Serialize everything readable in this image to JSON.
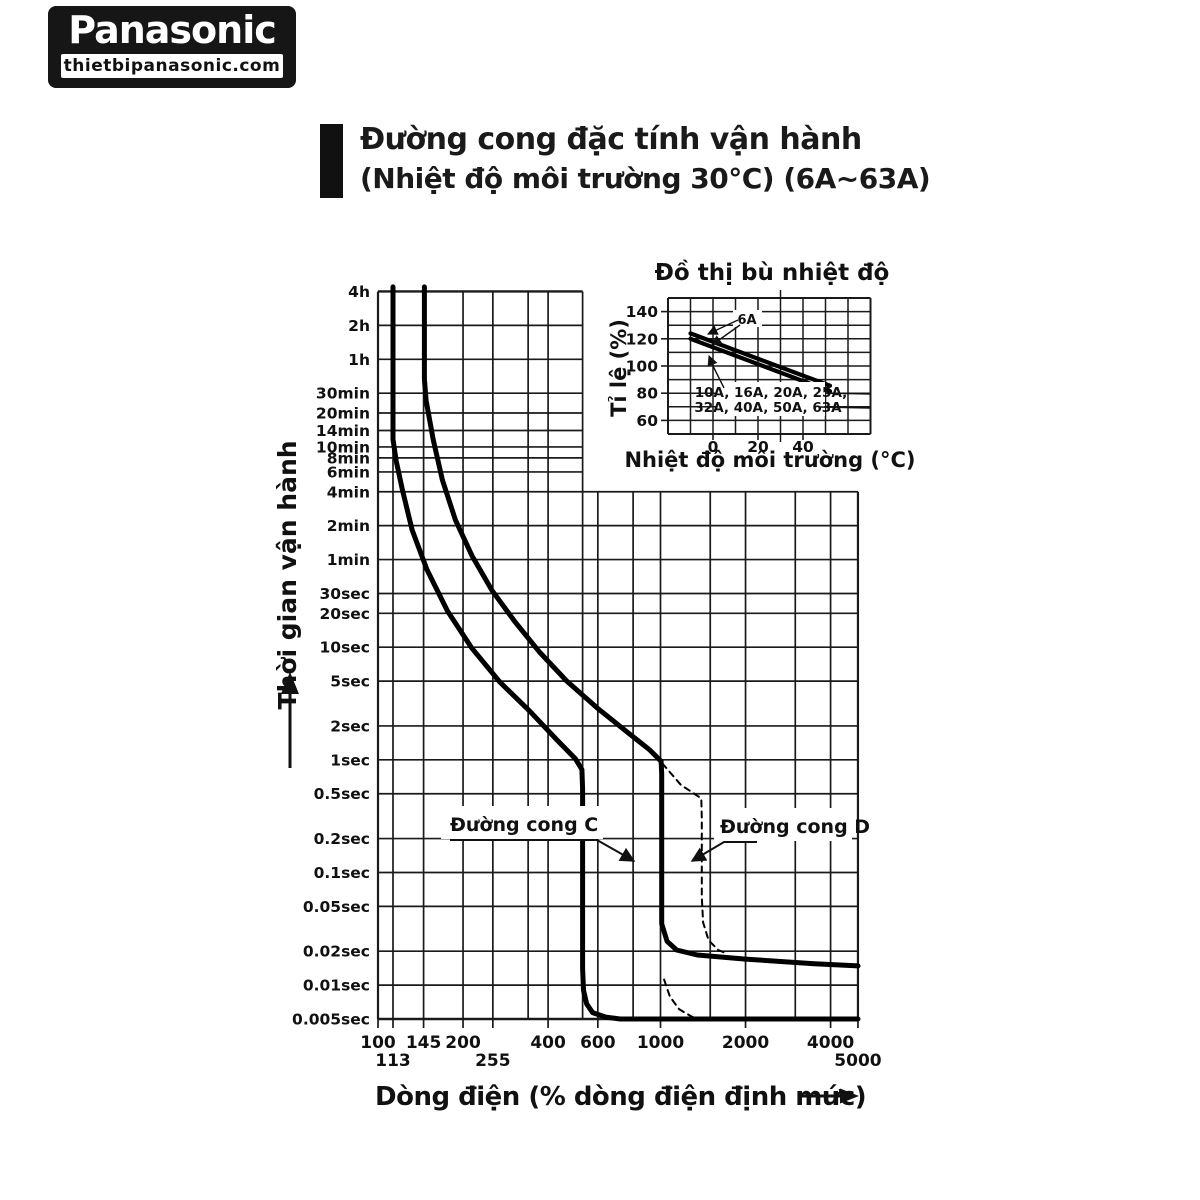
{
  "page": {
    "logo": {
      "brand": "Panasonic",
      "site": "thietbipanasonic.com"
    },
    "title": {
      "line1": "Đường cong đặc tính vận hành",
      "line2": "(Nhiệt độ môi trường 30°C) (6A~63A)"
    }
  },
  "chart_data": [
    {
      "type": "line",
      "name": "trip-characteristic-curve",
      "xlabel": "Dòng điện (% dòng điện định mức)",
      "ylabel": "Thời gian vận hành",
      "x_scale": "log",
      "y_scale": "log",
      "xlim": [
        100,
        5000
      ],
      "ylim": [
        0.005,
        14400
      ],
      "column_x_max": 530,
      "block_y_max": 240,
      "x_ticks": [
        {
          "v": 100,
          "label": "100",
          "row": 0
        },
        {
          "v": 113,
          "label": "113",
          "row": 1
        },
        {
          "v": 145,
          "label": "145",
          "row": 0
        },
        {
          "v": 200,
          "label": "200",
          "row": 0
        },
        {
          "v": 255,
          "label": "255",
          "row": 1
        },
        {
          "v": 400,
          "label": "400",
          "row": 0
        },
        {
          "v": 600,
          "label": "600",
          "row": 0
        },
        {
          "v": 1000,
          "label": "1000",
          "row": 0
        },
        {
          "v": 2000,
          "label": "2000",
          "row": 0
        },
        {
          "v": 4000,
          "label": "4000",
          "row": 0
        },
        {
          "v": 5000,
          "label": "5000",
          "row": 1
        }
      ],
      "x_grid_extra": [
        340,
        530,
        800,
        1500,
        3000
      ],
      "y_ticks": [
        {
          "v": 14400,
          "label": "4h"
        },
        {
          "v": 7200,
          "label": "2h"
        },
        {
          "v": 3600,
          "label": "1h"
        },
        {
          "v": 1800,
          "label": "30min"
        },
        {
          "v": 1200,
          "label": "20min"
        },
        {
          "v": 840,
          "label": "14min"
        },
        {
          "v": 600,
          "label": "10min"
        },
        {
          "v": 480,
          "label": "8min"
        },
        {
          "v": 360,
          "label": "6min"
        },
        {
          "v": 240,
          "label": "4min"
        },
        {
          "v": 120,
          "label": "2min"
        },
        {
          "v": 60,
          "label": "1min"
        },
        {
          "v": 30,
          "label": "30sec"
        },
        {
          "v": 20,
          "label": "20sec"
        },
        {
          "v": 10,
          "label": "10sec"
        },
        {
          "v": 5,
          "label": "5sec"
        },
        {
          "v": 2,
          "label": "2sec"
        },
        {
          "v": 1,
          "label": "1sec"
        },
        {
          "v": 0.5,
          "label": "0.5sec"
        },
        {
          "v": 0.2,
          "label": "0.2sec"
        },
        {
          "v": 0.1,
          "label": "0.1sec"
        },
        {
          "v": 0.05,
          "label": "0.05sec"
        },
        {
          "v": 0.02,
          "label": "0.02sec"
        },
        {
          "v": 0.01,
          "label": "0.01sec"
        },
        {
          "v": 0.005,
          "label": "0.005sec"
        }
      ],
      "series": [
        {
          "name": "curve-C-lower-boundary",
          "style": "solid",
          "points": [
            [
              113,
              15800
            ],
            [
              113,
              700
            ],
            [
              116,
              450
            ],
            [
              122,
              250
            ],
            [
              132,
              110
            ],
            [
              149,
              49
            ],
            [
              176,
              21
            ],
            [
              215,
              9.8
            ],
            [
              270,
              4.9
            ],
            [
              345,
              2.7
            ],
            [
              430,
              1.5
            ],
            [
              500,
              1.02
            ],
            [
              527,
              0.82
            ],
            [
              530,
              0.55
            ],
            [
              530,
              0.014
            ],
            [
              534,
              0.009
            ],
            [
              548,
              0.0068
            ],
            [
              575,
              0.0057
            ],
            [
              640,
              0.0052
            ],
            [
              720,
              0.005
            ],
            [
              5000,
              0.005
            ]
          ]
        },
        {
          "name": "curve-C-upper-boundary",
          "style": "solid",
          "points": [
            [
              146,
              15800
            ],
            [
              146,
              2400
            ],
            [
              148,
              1550
            ],
            [
              157,
              690
            ],
            [
              169,
              305
            ],
            [
              188,
              135
            ],
            [
              215,
              65
            ],
            [
              253,
              32
            ],
            [
              306,
              16.7
            ],
            [
              374,
              9.0
            ],
            [
              466,
              5.0
            ],
            [
              596,
              2.9
            ],
            [
              749,
              1.83
            ],
            [
              917,
              1.22
            ],
            [
              1005,
              0.97
            ],
            [
              1010,
              0.75
            ],
            [
              1010,
              0.035
            ],
            [
              1055,
              0.0245
            ],
            [
              1140,
              0.0205
            ],
            [
              1350,
              0.0185
            ],
            [
              2000,
              0.017
            ],
            [
              3500,
              0.0155
            ],
            [
              5000,
              0.0148
            ]
          ]
        },
        {
          "name": "curve-D-upper-boundary",
          "style": "dashed",
          "points": [
            [
              1015,
              0.93
            ],
            [
              1180,
              0.6
            ],
            [
              1395,
              0.455
            ],
            [
              1400,
              0.3
            ],
            [
              1400,
              0.06
            ],
            [
              1415,
              0.036
            ],
            [
              1480,
              0.025
            ],
            [
              1600,
              0.0205
            ],
            [
              1720,
              0.019
            ]
          ]
        },
        {
          "name": "curve-D-lower-boundary",
          "style": "dashed",
          "points": [
            [
              1030,
              0.0112
            ],
            [
              1080,
              0.0079
            ],
            [
              1165,
              0.0061
            ],
            [
              1300,
              0.0052
            ],
            [
              1420,
              0.005
            ]
          ]
        }
      ],
      "annotations": [
        {
          "text": "Đường cong C"
        },
        {
          "text": "Đường cong D"
        }
      ]
    },
    {
      "type": "line",
      "name": "temperature-compensation-chart",
      "title": "Đồ thị bù nhiệt độ",
      "xlabel": "Nhiệt độ môi trường (°C)",
      "ylabel": "Tỉ lệ (%)",
      "xlim": [
        -20,
        70
      ],
      "ylim": [
        50,
        150
      ],
      "grid_step": 10,
      "reference_x": 30,
      "x_ticks": [
        0,
        20,
        40
      ],
      "y_ticks": [
        60,
        80,
        100,
        120,
        140
      ],
      "series": [
        {
          "name": "line-6A",
          "points": [
            [
              -10,
              124
            ],
            [
              52,
              85.5
            ]
          ]
        },
        {
          "name": "line-10A-63A",
          "points": [
            [
              -10,
              120
            ],
            [
              52,
              81.5
            ]
          ]
        }
      ],
      "annotations": [
        {
          "text": "6A"
        },
        {
          "text": "10A, 16A, 20A, 25A,"
        },
        {
          "text": "32A, 40A, 50A, 63A"
        }
      ]
    }
  ]
}
